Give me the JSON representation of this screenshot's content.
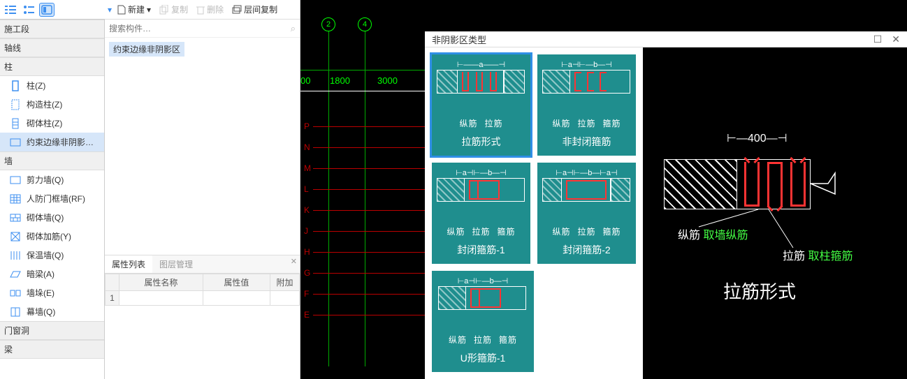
{
  "topbar": {
    "icons": [
      "list",
      "tree",
      "panel"
    ],
    "active_index": 2
  },
  "sidebar": {
    "sections": [
      {
        "title": "施工段",
        "items": []
      },
      {
        "title": "轴线",
        "items": []
      },
      {
        "title": "柱",
        "items": [
          {
            "icon": "col",
            "label": "柱(Z)"
          },
          {
            "icon": "gzcol",
            "label": "构造柱(Z)"
          },
          {
            "icon": "mtcol",
            "label": "砌体柱(Z)"
          },
          {
            "icon": "yscol",
            "label": "约束边缘非阴影…",
            "selected": true
          }
        ]
      },
      {
        "title": "墙",
        "items": [
          {
            "icon": "wall",
            "label": "剪力墙(Q)"
          },
          {
            "icon": "rfwall",
            "label": "人防门框墙(RF)"
          },
          {
            "icon": "mwall",
            "label": "砌体墙(Q)"
          },
          {
            "icon": "mreinf",
            "label": "砌体加筋(Y)"
          },
          {
            "icon": "insul",
            "label": "保温墙(Q)"
          },
          {
            "icon": "beam",
            "label": "暗梁(A)"
          },
          {
            "icon": "edge",
            "label": "墙垛(E)"
          },
          {
            "icon": "curt",
            "label": "幕墙(Q)"
          }
        ]
      },
      {
        "title": "门窗洞",
        "items": []
      },
      {
        "title": "梁",
        "items": []
      }
    ]
  },
  "middle": {
    "toolbar": {
      "new": "新建",
      "copy": "复制",
      "delete": "删除",
      "layer": "层间复制"
    },
    "search_placeholder": "搜索构件…",
    "tag": "约束边缘非阴影区",
    "prop_tabs": [
      "属性列表",
      "图层管理"
    ],
    "prop_cols": [
      "属性名称",
      "属性值",
      "附加"
    ],
    "row1": "1"
  },
  "canvas": {
    "col_markers": [
      "2",
      "4"
    ],
    "row_letters": [
      "P",
      "N",
      "M",
      "L",
      "K",
      "J",
      "H",
      "G",
      "F",
      "E"
    ],
    "dims": [
      "00",
      "1800",
      "3000"
    ]
  },
  "dialog": {
    "title": "非阴影区类型",
    "cards": [
      {
        "title": "拉筋形式",
        "labels": [
          "纵筋",
          "拉筋"
        ],
        "dim": "⊢——a——⊣",
        "selected": true,
        "type": "tie"
      },
      {
        "title": "非封闭箍筋",
        "labels": [
          "纵筋",
          "拉筋",
          "箍筋"
        ],
        "dim": "⊢a⊣⊢—b—⊣",
        "selected": false,
        "type": "open"
      },
      {
        "title": "封闭箍筋-1",
        "labels": [
          "纵筋",
          "拉筋",
          "箍筋"
        ],
        "dim": "⊢a⊣⊢—b—⊣",
        "selected": false,
        "type": "closed1"
      },
      {
        "title": "封闭箍筋-2",
        "labels": [
          "纵筋",
          "拉筋",
          "箍筋"
        ],
        "dim": "⊢a⊣⊢—b—⊢a⊣",
        "selected": false,
        "type": "closed2"
      },
      {
        "title": "U形箍筋-1",
        "labels": [
          "纵筋",
          "拉筋",
          "箍筋"
        ],
        "dim": "⊢a⊣⊢—b—⊣",
        "selected": false,
        "type": "u1"
      }
    ],
    "preview": {
      "dim_value": "400",
      "label1a": "纵筋",
      "label1b": "取墙纵筋",
      "label2a": "拉筋",
      "label2b": "取柱箍筋",
      "title": "拉筋形式"
    }
  },
  "colors": {
    "teal": "#1f8e8e",
    "accent": "#2f8fe6",
    "red": "#f33",
    "green": "#4f4"
  }
}
